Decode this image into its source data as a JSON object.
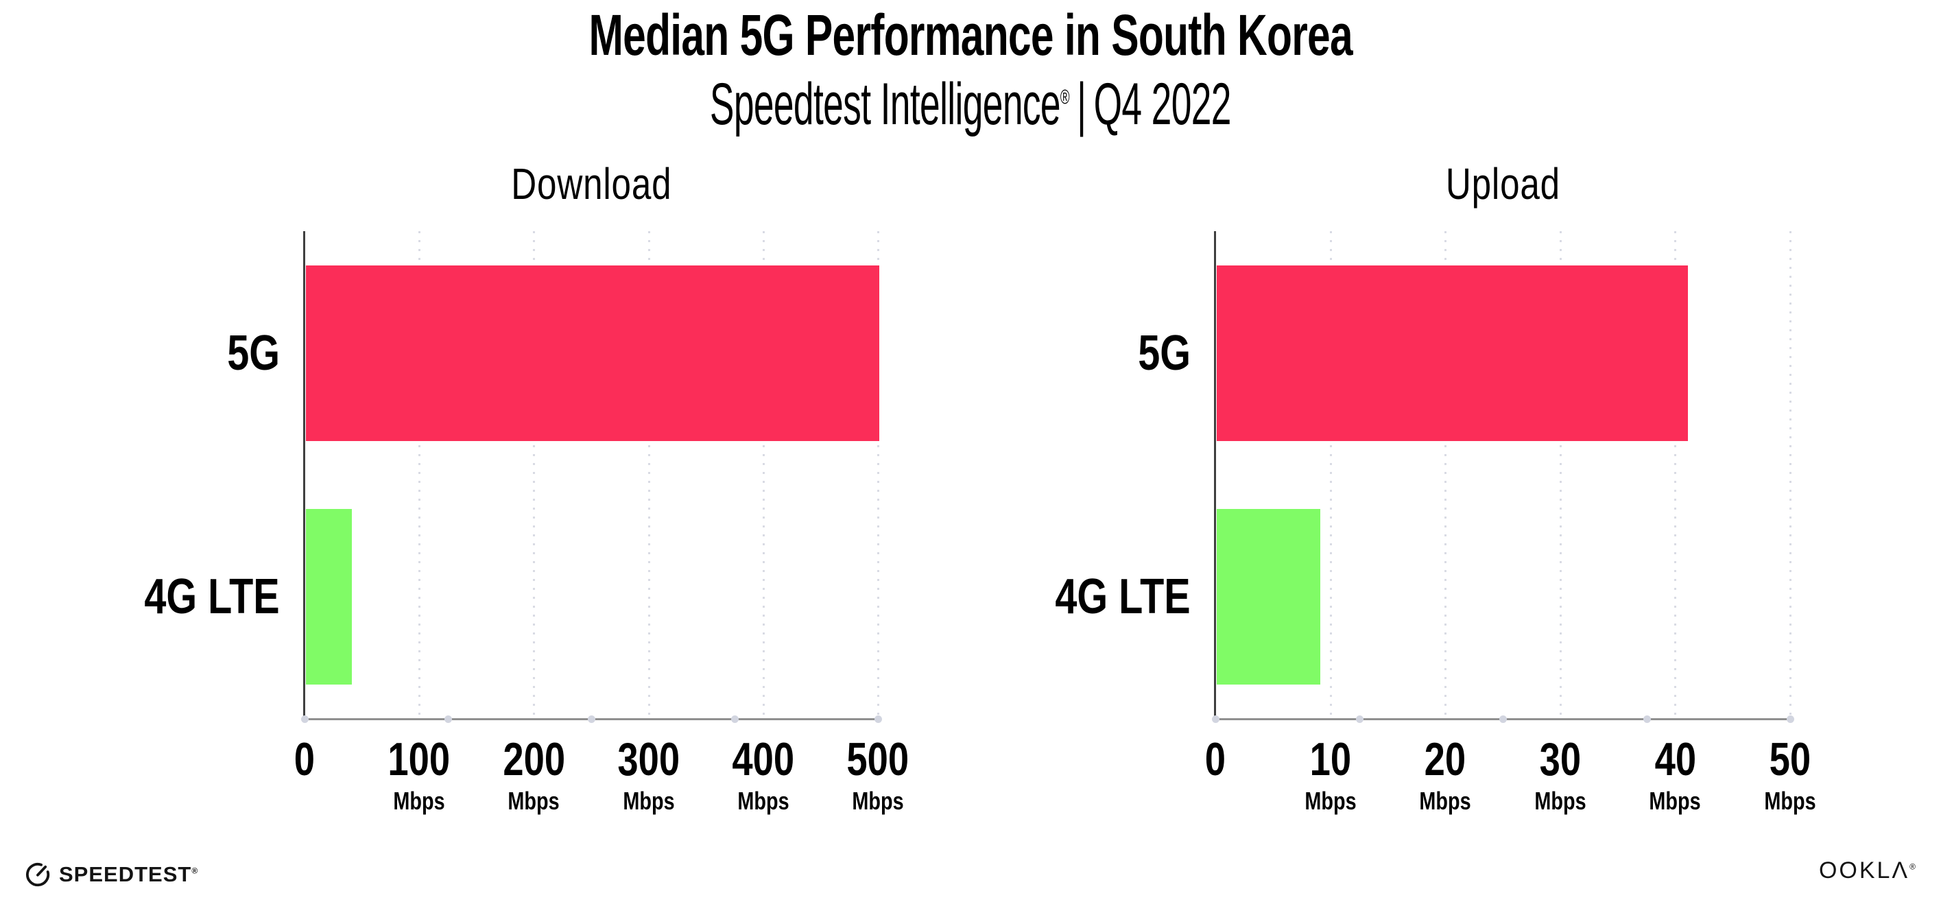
{
  "header": {
    "title": "Median 5G Performance in South Korea",
    "subtitle_brand": "Speedtest Intelligence",
    "subtitle_reg": "®",
    "subtitle_sep": "|",
    "subtitle_period": "Q4 2022"
  },
  "chart_data": [
    {
      "type": "bar",
      "orientation": "horizontal",
      "title": "Download",
      "unit": "Mbps",
      "categories": [
        "5G",
        "4G LTE"
      ],
      "values": [
        500,
        40
      ],
      "xlim": [
        0,
        500
      ],
      "xticks": [
        0,
        100,
        200,
        300,
        400,
        500
      ],
      "bar_colors": [
        "#fb2d58",
        "#80fb66"
      ],
      "grid": "vertical-dotted",
      "legend": "none"
    },
    {
      "type": "bar",
      "orientation": "horizontal",
      "title": "Upload",
      "unit": "Mbps",
      "categories": [
        "5G",
        "4G LTE"
      ],
      "values": [
        41,
        9
      ],
      "xlim": [
        0,
        50
      ],
      "xticks": [
        0,
        10,
        20,
        30,
        40,
        50
      ],
      "bar_colors": [
        "#fb2d58",
        "#80fb66"
      ],
      "grid": "vertical-dotted",
      "legend": "none"
    }
  ],
  "colors": {
    "bar_5g": "#fb2d58",
    "bar_4g_lte": "#80fb66",
    "x_axis": "#909090",
    "y_axis": "#3f3f3f",
    "grid_dot": "#d9dbe4",
    "axis_marker_dot": "#d2d5e0",
    "text": "#000000",
    "background": "#ffffff"
  },
  "footer": {
    "speedtest_label": "SPEEDTEST",
    "speedtest_reg": "®",
    "ookla_label": "OOKLΛ",
    "ookla_reg": "®"
  }
}
